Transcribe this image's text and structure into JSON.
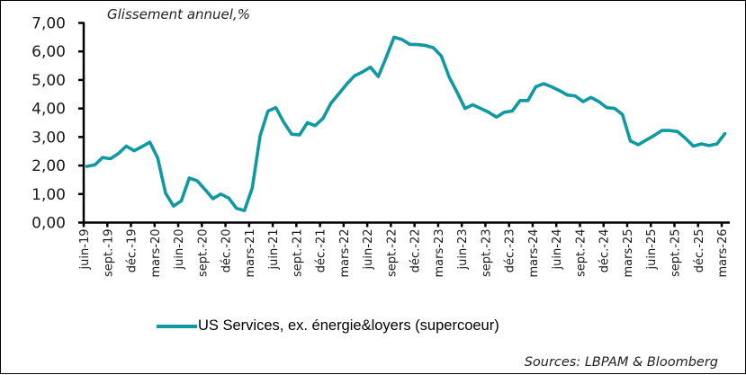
{
  "chart": {
    "subtitle": "Glissement annuel,%",
    "legend_label": "US Services, ex. énergie&loyers (supercoeur)",
    "source": "Sources: LBPAM & Bloomberg",
    "line_color": "#0E9AA0"
  },
  "chart_data": {
    "type": "line",
    "title": "Glissement annuel,%",
    "xlabel": "",
    "ylabel": "",
    "ylim": [
      0,
      7
    ],
    "yticks": [
      "0,00",
      "1,00",
      "2,00",
      "3,00",
      "4,00",
      "5,00",
      "6,00",
      "7,00"
    ],
    "xtick_labels": [
      "juin-19",
      "sept.-19",
      "déc.-19",
      "mars-20",
      "juin-20",
      "sept.-20",
      "déc.-20",
      "mars-21",
      "juin-21",
      "sept.-21",
      "déc.-21",
      "mars-22",
      "juin-22",
      "sept.-22",
      "déc.-22",
      "mars-23",
      "juin-23",
      "sept.-23",
      "déc.-23",
      "mars-24",
      "juin-24",
      "sept.-24",
      "déc.-24",
      "mars-25",
      "juin-25",
      "sept.-25",
      "déc.-25",
      "mars-26"
    ],
    "grid": false,
    "legend_position": "bottom",
    "x_start": "2019-06",
    "x_frequency": "monthly",
    "series": [
      {
        "name": "US Services, ex. énergie&loyers (supercoeur)",
        "color": "#0E9AA0",
        "values": [
          1.97,
          2.02,
          2.28,
          2.24,
          2.42,
          2.68,
          2.52,
          2.66,
          2.82,
          2.26,
          1.03,
          0.58,
          0.76,
          1.56,
          1.47,
          1.16,
          0.84,
          1.0,
          0.86,
          0.5,
          0.42,
          1.21,
          3.05,
          3.91,
          4.03,
          3.52,
          3.1,
          3.07,
          3.5,
          3.4,
          3.66,
          4.19,
          4.52,
          4.86,
          5.15,
          5.28,
          5.45,
          5.12,
          5.79,
          6.5,
          6.42,
          6.25,
          6.24,
          6.21,
          6.13,
          5.84,
          5.1,
          4.57,
          4.0,
          4.13,
          4.0,
          3.87,
          3.7,
          3.87,
          3.91,
          4.28,
          4.28,
          4.76,
          4.87,
          4.76,
          4.63,
          4.47,
          4.44,
          4.24,
          4.39,
          4.24,
          4.03,
          4.0,
          3.79,
          2.86,
          2.73,
          2.89,
          3.05,
          3.23,
          3.23,
          3.19,
          2.95,
          2.68,
          2.76,
          2.7,
          2.76,
          3.12
        ]
      }
    ]
  }
}
